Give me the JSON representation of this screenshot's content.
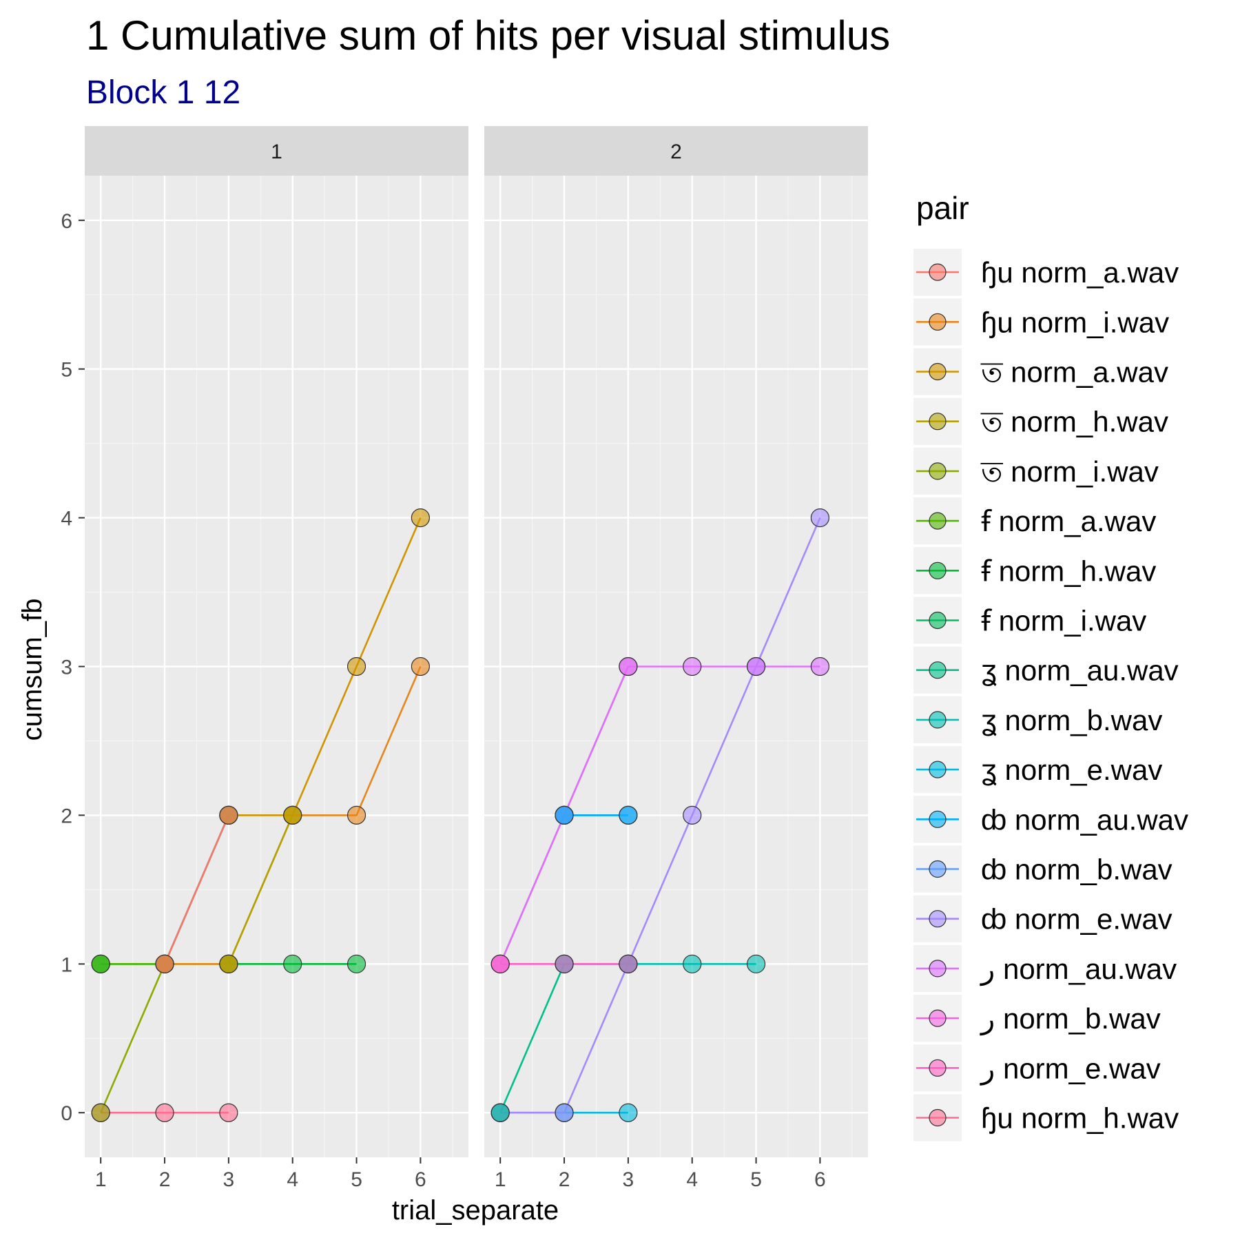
{
  "chart_data": {
    "type": "line",
    "title": "1 Cumulative sum of hits per visual stimulus",
    "subtitle": "Block  1 12",
    "xlabel": "trial_separate",
    "ylabel": "cumsum_fb",
    "xlim": [
      0.75,
      6.75
    ],
    "ylim": [
      -0.3,
      6.3
    ],
    "x_ticks": [
      1,
      2,
      3,
      4,
      5,
      6
    ],
    "y_ticks": [
      0,
      1,
      2,
      3,
      4,
      5,
      6
    ],
    "grid": true,
    "legend_position": "right",
    "legend_title": "pair",
    "colors": {
      "panel_bg": "#EBEBEB",
      "strip_bg": "#D9D9D9",
      "grid": "#FFFFFF",
      "subtitle": "#00008B"
    },
    "series": [
      {
        "name": "ɧu norm_a.wav",
        "color": "#F8766D"
      },
      {
        "name": "ɧu norm_i.wav",
        "color": "#E7861B"
      },
      {
        "name": "ত norm_a.wav",
        "color": "#D09400"
      },
      {
        "name": "ত norm_h.wav",
        "color": "#B2A100"
      },
      {
        "name": "ত norm_i.wav",
        "color": "#8CAB00"
      },
      {
        "name": "ꞙ norm_a.wav",
        "color": "#53B400"
      },
      {
        "name": "ꞙ norm_h.wav",
        "color": "#00BA38"
      },
      {
        "name": "ꞙ norm_i.wav",
        "color": "#00BD5F"
      },
      {
        "name": "ʓ norm_au.wav",
        "color": "#00C08B"
      },
      {
        "name": "ʓ norm_b.wav",
        "color": "#00BFB4"
      },
      {
        "name": "ʓ norm_e.wav",
        "color": "#00BAE0"
      },
      {
        "name": "ȸ norm_au.wav",
        "color": "#00B0F6"
      },
      {
        "name": "ȸ norm_b.wav",
        "color": "#619CFF"
      },
      {
        "name": "ȸ norm_e.wav",
        "color": "#A58AFF"
      },
      {
        "name": "ﺭ norm_au.wav",
        "color": "#DB72FB"
      },
      {
        "name": "ﺭ norm_b.wav",
        "color": "#F564E3"
      },
      {
        "name": "ﺭ norm_e.wav",
        "color": "#FF61C3"
      },
      {
        "name": "ɧu norm_h.wav",
        "color": "#FF6C91"
      }
    ],
    "panels": [
      {
        "label": "1",
        "lines": [
          {
            "series": 17,
            "points": [
              [
                1,
                0
              ],
              [
                2,
                0
              ],
              [
                3,
                0
              ]
            ]
          },
          {
            "series": 4,
            "points": [
              [
                1,
                0
              ],
              [
                2,
                1
              ],
              [
                3,
                2
              ]
            ]
          },
          {
            "series": 7,
            "points": [
              [
                1,
                1
              ],
              [
                2,
                1
              ],
              [
                3,
                2
              ]
            ]
          },
          {
            "series": 6,
            "points": [
              [
                1,
                1
              ],
              [
                2,
                1
              ],
              [
                3,
                1
              ],
              [
                4,
                1
              ],
              [
                5,
                1
              ]
            ]
          },
          {
            "series": 5,
            "points": [
              [
                1,
                1
              ],
              [
                2,
                1
              ],
              [
                3,
                1
              ]
            ]
          },
          {
            "series": 1,
            "points": [
              [
                2,
                1
              ],
              [
                3,
                1
              ],
              [
                4,
                2
              ],
              [
                5,
                2
              ],
              [
                6,
                3
              ]
            ]
          },
          {
            "series": 2,
            "points": [
              [
                3,
                2
              ],
              [
                4,
                2
              ],
              [
                5,
                3
              ],
              [
                6,
                4
              ]
            ]
          },
          {
            "series": 3,
            "points": [
              [
                3,
                1
              ],
              [
                4,
                2
              ]
            ]
          },
          {
            "series": 0,
            "points": [
              [
                2,
                1
              ],
              [
                3,
                2
              ]
            ]
          }
        ]
      },
      {
        "label": "2",
        "lines": [
          {
            "series": 10,
            "points": [
              [
                1,
                0
              ],
              [
                2,
                0
              ],
              [
                3,
                0
              ]
            ]
          },
          {
            "series": 13,
            "points": [
              [
                1,
                0
              ],
              [
                2,
                0
              ],
              [
                3,
                1
              ],
              [
                4,
                2
              ],
              [
                5,
                3
              ],
              [
                6,
                4
              ]
            ]
          },
          {
            "series": 8,
            "points": [
              [
                1,
                0
              ],
              [
                2,
                1
              ],
              [
                3,
                1
              ]
            ]
          },
          {
            "series": 9,
            "points": [
              [
                2,
                1
              ],
              [
                3,
                1
              ],
              [
                4,
                1
              ],
              [
                5,
                1
              ]
            ]
          },
          {
            "series": 15,
            "points": [
              [
                1,
                1
              ],
              [
                2,
                2
              ],
              [
                3,
                3
              ]
            ]
          },
          {
            "series": 14,
            "points": [
              [
                1,
                1
              ],
              [
                2,
                2
              ],
              [
                3,
                3
              ],
              [
                4,
                3
              ],
              [
                5,
                3
              ],
              [
                6,
                3
              ]
            ]
          },
          {
            "series": 12,
            "points": [
              [
                2,
                2
              ],
              [
                3,
                2
              ]
            ]
          },
          {
            "series": 11,
            "points": [
              [
                2,
                2
              ],
              [
                3,
                2
              ]
            ]
          },
          {
            "series": 16,
            "points": [
              [
                1,
                1
              ],
              [
                2,
                1
              ],
              [
                3,
                1
              ]
            ]
          }
        ]
      }
    ]
  }
}
